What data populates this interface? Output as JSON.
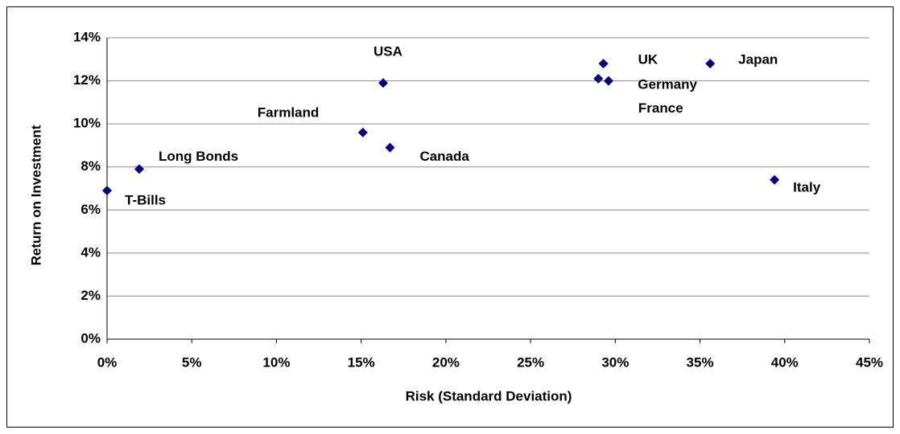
{
  "chart_data": {
    "type": "scatter",
    "x_label": "Risk (Standard Deviation)",
    "y_label": "Return on Investment",
    "point_labels": [
      "T-Bills",
      "Long Bonds",
      "Farmland",
      "USA",
      "Canada",
      "UK",
      "Germany",
      "France",
      "Japan",
      "Italy"
    ],
    "x": [
      0,
      1.9,
      15.1,
      16.3,
      16.7,
      29.3,
      29.0,
      29.6,
      35.6,
      39.4
    ],
    "values": [
      6.9,
      7.9,
      9.6,
      11.9,
      8.9,
      12.8,
      12.1,
      12.0,
      12.8,
      7.4
    ],
    "color": "#000080",
    "xlim": [
      0,
      45
    ],
    "ylim": [
      0,
      14
    ],
    "xticks": [
      {
        "value": 0,
        "label": "0%"
      },
      {
        "value": 5,
        "label": "5%"
      },
      {
        "value": 10,
        "label": "10%"
      },
      {
        "value": 15,
        "label": "15%"
      },
      {
        "value": 20,
        "label": "20%"
      },
      {
        "value": 25,
        "label": "25%"
      },
      {
        "value": 30,
        "label": "30%"
      },
      {
        "value": 35,
        "label": "35%"
      },
      {
        "value": 40,
        "label": "40%"
      },
      {
        "value": 45,
        "label": "45%"
      }
    ],
    "yticks": [
      {
        "value": 0,
        "label": "0%"
      },
      {
        "value": 2,
        "label": "2%"
      },
      {
        "value": 4,
        "label": "4%"
      },
      {
        "value": 6,
        "label": "6%"
      },
      {
        "value": 8,
        "label": "8%"
      },
      {
        "value": 10,
        "label": "10%"
      },
      {
        "value": 12,
        "label": "12%"
      },
      {
        "value": 14,
        "label": "14%"
      }
    ],
    "grid": true
  }
}
